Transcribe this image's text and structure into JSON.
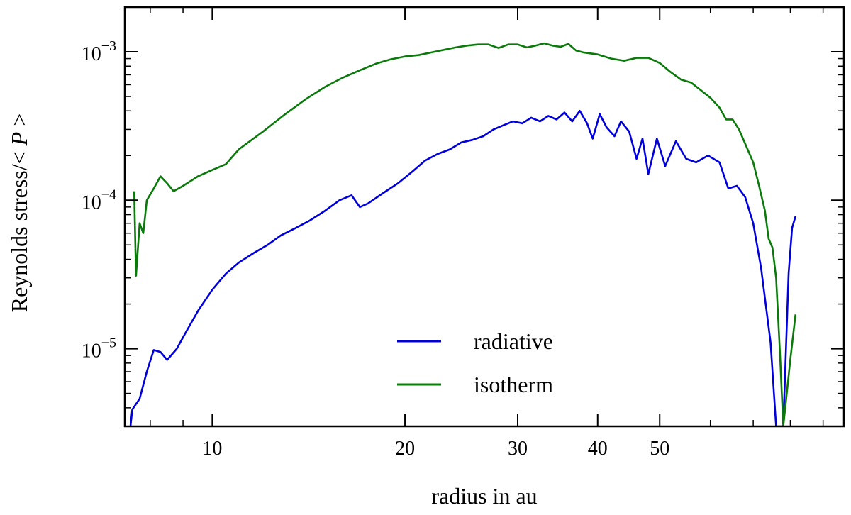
{
  "chart_data": {
    "type": "line",
    "title": "",
    "xlabel": "radius in au",
    "ylabel": "Reynolds stress/< P >",
    "xscale": "log",
    "yscale": "log",
    "xlim": [
      7.3,
      97
    ],
    "ylim": [
      3e-06,
      0.002
    ],
    "grid": false,
    "legend_position": "lower-center",
    "x_ticks": [
      {
        "value": 10,
        "label": "10"
      },
      {
        "value": 20,
        "label": "20"
      },
      {
        "value": 30,
        "label": "30"
      },
      {
        "value": 40,
        "label": "40"
      },
      {
        "value": 50,
        "label": "50"
      }
    ],
    "y_ticks": [
      {
        "value": 1e-05,
        "base": "10",
        "exp": "−5"
      },
      {
        "value": 0.0001,
        "base": "10",
        "exp": "−4"
      },
      {
        "value": 0.001,
        "base": "10",
        "exp": "−3"
      }
    ],
    "series": [
      {
        "name": "radiative",
        "color": "#0000dd",
        "points": [
          [
            7.45,
            3e-06
          ],
          [
            7.5,
            3.9e-06
          ],
          [
            7.7,
            4.6e-06
          ],
          [
            7.9,
            7e-06
          ],
          [
            8.1,
            9.8e-06
          ],
          [
            8.3,
            9.5e-06
          ],
          [
            8.5,
            8.4e-06
          ],
          [
            8.8,
            1e-05
          ],
          [
            9.1,
            1.3e-05
          ],
          [
            9.5,
            1.8e-05
          ],
          [
            10.0,
            2.5e-05
          ],
          [
            10.5,
            3.2e-05
          ],
          [
            11.0,
            3.8e-05
          ],
          [
            11.6,
            4.4e-05
          ],
          [
            12.2,
            5e-05
          ],
          [
            12.8,
            5.8e-05
          ],
          [
            13.5,
            6.5e-05
          ],
          [
            14.2,
            7.3e-05
          ],
          [
            15.0,
            8.5e-05
          ],
          [
            15.8,
            0.0001
          ],
          [
            16.5,
            0.000108
          ],
          [
            17.0,
            9e-05
          ],
          [
            17.5,
            9.5e-05
          ],
          [
            18.5,
            0.000112
          ],
          [
            19.5,
            0.00013
          ],
          [
            20.5,
            0.000155
          ],
          [
            21.5,
            0.000185
          ],
          [
            22.5,
            0.000205
          ],
          [
            23.5,
            0.00022
          ],
          [
            24.5,
            0.000245
          ],
          [
            25.5,
            0.000255
          ],
          [
            26.5,
            0.00027
          ],
          [
            27.5,
            0.0003
          ],
          [
            28.5,
            0.00032
          ],
          [
            29.5,
            0.00034
          ],
          [
            30.5,
            0.00033
          ],
          [
            31.5,
            0.00036
          ],
          [
            32.5,
            0.00034
          ],
          [
            33.5,
            0.00037
          ],
          [
            34.5,
            0.00035
          ],
          [
            35.5,
            0.00039
          ],
          [
            36.5,
            0.00034
          ],
          [
            37.5,
            0.0004
          ],
          [
            38.5,
            0.00033
          ],
          [
            39.3,
            0.00026
          ],
          [
            40.3,
            0.00038
          ],
          [
            41.3,
            0.00031
          ],
          [
            42.5,
            0.00027
          ],
          [
            43.5,
            0.00034
          ],
          [
            44.8,
            0.00029
          ],
          [
            46.0,
            0.00019
          ],
          [
            47.0,
            0.00026
          ],
          [
            48.0,
            0.00015
          ],
          [
            49.5,
            0.00026
          ],
          [
            51.0,
            0.00017
          ],
          [
            53.0,
            0.00025
          ],
          [
            55.0,
            0.00019
          ],
          [
            57.0,
            0.00018
          ],
          [
            59.5,
            0.0002
          ],
          [
            62.0,
            0.00018
          ],
          [
            64.0,
            0.00012
          ],
          [
            66.0,
            0.000125
          ],
          [
            68.0,
            0.000105
          ],
          [
            70.0,
            7e-05
          ],
          [
            72.0,
            3.5e-05
          ],
          [
            74.5,
            1.1e-05
          ],
          [
            76.0,
            3e-06
          ],
          [
            78.0,
            3e-06
          ],
          [
            79.5,
            3.2e-05
          ],
          [
            80.5,
            6.5e-05
          ],
          [
            81.5,
            7.8e-05
          ]
        ]
      },
      {
        "name": "isotherm",
        "color": "#0a7a0a",
        "points": [
          [
            7.55,
            0.000115
          ],
          [
            7.6,
            3.1e-05
          ],
          [
            7.7,
            7e-05
          ],
          [
            7.8,
            6e-05
          ],
          [
            7.9,
            0.0001
          ],
          [
            8.1,
            0.00012
          ],
          [
            8.3,
            0.000145
          ],
          [
            8.5,
            0.00013
          ],
          [
            8.7,
            0.000115
          ],
          [
            9.0,
            0.000125
          ],
          [
            9.5,
            0.000145
          ],
          [
            10.0,
            0.00016
          ],
          [
            10.5,
            0.000175
          ],
          [
            11.0,
            0.00022
          ],
          [
            12.0,
            0.00029
          ],
          [
            13.0,
            0.00038
          ],
          [
            14.0,
            0.00048
          ],
          [
            15.0,
            0.00058
          ],
          [
            16.0,
            0.00067
          ],
          [
            17.0,
            0.00075
          ],
          [
            18.0,
            0.00083
          ],
          [
            19.0,
            0.00089
          ],
          [
            20.0,
            0.00093
          ],
          [
            21.0,
            0.00095
          ],
          [
            22.0,
            0.00099
          ],
          [
            23.0,
            0.00103
          ],
          [
            24.0,
            0.00107
          ],
          [
            25.0,
            0.0011
          ],
          [
            26.0,
            0.00112
          ],
          [
            27.0,
            0.00112
          ],
          [
            28.0,
            0.00106
          ],
          [
            29.0,
            0.00112
          ],
          [
            30.0,
            0.00112
          ],
          [
            31.0,
            0.00107
          ],
          [
            32.0,
            0.0011
          ],
          [
            33.0,
            0.00114
          ],
          [
            34.0,
            0.0011
          ],
          [
            35.0,
            0.00108
          ],
          [
            36.0,
            0.00113
          ],
          [
            37.0,
            0.00102
          ],
          [
            38.0,
            0.00099
          ],
          [
            40.0,
            0.00096
          ],
          [
            42.0,
            0.0009
          ],
          [
            44.0,
            0.00087
          ],
          [
            46.0,
            0.00091
          ],
          [
            48.0,
            0.00091
          ],
          [
            50.0,
            0.00084
          ],
          [
            52.0,
            0.00073
          ],
          [
            54.0,
            0.00065
          ],
          [
            56.0,
            0.00062
          ],
          [
            58.0,
            0.00055
          ],
          [
            60.0,
            0.00049
          ],
          [
            62.0,
            0.00042
          ],
          [
            63.5,
            0.00035
          ],
          [
            65.0,
            0.00035
          ],
          [
            66.5,
            0.0003
          ],
          [
            68.0,
            0.00024
          ],
          [
            70.0,
            0.00018
          ],
          [
            71.5,
            0.000125
          ],
          [
            73.0,
            8.5e-05
          ],
          [
            74.0,
            5.5e-05
          ],
          [
            75.0,
            4.8e-05
          ],
          [
            76.0,
            3e-05
          ],
          [
            77.0,
            1e-05
          ],
          [
            78.0,
            3e-06
          ],
          [
            80.0,
            8.5e-06
          ],
          [
            81.5,
            1.7e-05
          ]
        ]
      }
    ]
  }
}
